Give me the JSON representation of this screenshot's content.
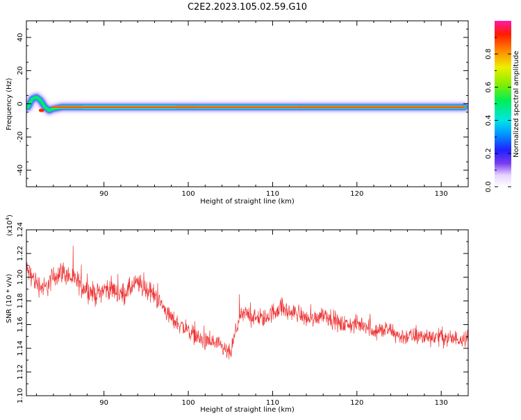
{
  "page_title": "C2E2.2023.105.02.59.G10",
  "chart_data": [
    {
      "type": "heatmap",
      "name": "spectrogram",
      "title": "C2E2.2023.105.02.59.G10",
      "xlabel": "Height of straight line (km)",
      "ylabel": "Frequency (Hz)",
      "xlim": [
        80.8,
        133.2
      ],
      "ylim": [
        -50,
        50
      ],
      "xticks": [
        90,
        100,
        110,
        120,
        130
      ],
      "yticks": [
        40,
        20,
        0,
        -20,
        -40
      ],
      "ridge": [
        [
          81.0,
          -2
        ],
        [
          81.5,
          3
        ],
        [
          82.0,
          4
        ],
        [
          82.5,
          2
        ],
        [
          83.0,
          -2
        ],
        [
          83.5,
          -4
        ],
        [
          84.0,
          -3
        ],
        [
          85,
          -2
        ],
        [
          90,
          -2
        ],
        [
          95,
          -2
        ],
        [
          100,
          -2
        ],
        [
          105,
          -2
        ],
        [
          110,
          -2
        ],
        [
          115,
          -2
        ],
        [
          120,
          -2
        ],
        [
          125,
          -2
        ],
        [
          130,
          -2
        ],
        [
          132.8,
          -2
        ]
      ],
      "colorbar": {
        "label": "Normalized spectral amplitude",
        "range": [
          0.0,
          1.0
        ],
        "ticks": [
          0.0,
          0.2,
          0.4,
          0.6,
          0.8
        ],
        "tick_labels": [
          "0.0",
          "0.2",
          "0.4",
          "0.6",
          "0.8"
        ]
      }
    },
    {
      "type": "line",
      "name": "snr",
      "xlabel": "Height of straight line (km)",
      "ylabel": "SNR (10 * v/v)",
      "scale_label": "(x10",
      "scale_exp": "4",
      "scale_close": ")",
      "xlim": [
        80.8,
        133.2
      ],
      "ylim": [
        1.1,
        1.24
      ],
      "xticks": [
        90,
        100,
        110,
        120,
        130
      ],
      "yticks": [
        1.1,
        1.12,
        1.14,
        1.16,
        1.18,
        1.2,
        1.22,
        1.24
      ],
      "ytick_labels": [
        "1.10",
        "1.12",
        "1.14",
        "1.16",
        "1.18",
        "1.20",
        "1.22",
        "1.24"
      ],
      "color": "#ee3333",
      "x": [
        81,
        82,
        83,
        84,
        85,
        86,
        87,
        88,
        89,
        90,
        91,
        92,
        93,
        94,
        95,
        96,
        97,
        98,
        99,
        100,
        101,
        102,
        103,
        104,
        105,
        106,
        107,
        108,
        109,
        110,
        111,
        112,
        113,
        114,
        115,
        116,
        117,
        118,
        119,
        120,
        121,
        122,
        123,
        124,
        125,
        126,
        127,
        128,
        129,
        130,
        131,
        132,
        133
      ],
      "y": [
        1.205,
        1.195,
        1.19,
        1.2,
        1.205,
        1.2,
        1.195,
        1.19,
        1.185,
        1.19,
        1.19,
        1.185,
        1.19,
        1.195,
        1.19,
        1.185,
        1.175,
        1.165,
        1.16,
        1.155,
        1.15,
        1.145,
        1.145,
        1.14,
        1.135,
        1.165,
        1.17,
        1.165,
        1.165,
        1.17,
        1.175,
        1.17,
        1.17,
        1.165,
        1.165,
        1.17,
        1.165,
        1.16,
        1.16,
        1.16,
        1.16,
        1.155,
        1.155,
        1.155,
        1.15,
        1.15,
        1.15,
        1.15,
        1.15,
        1.15,
        1.148,
        1.148,
        1.15
      ],
      "noise": [
        0.014,
        0.014,
        0.014,
        0.014,
        0.014,
        0.014,
        0.014,
        0.014,
        0.013,
        0.013,
        0.013,
        0.013,
        0.013,
        0.013,
        0.013,
        0.012,
        0.012,
        0.011,
        0.011,
        0.011,
        0.011,
        0.011,
        0.011,
        0.011,
        0.011,
        0.011,
        0.011,
        0.011,
        0.011,
        0.012,
        0.012,
        0.011,
        0.011,
        0.011,
        0.011,
        0.011,
        0.011,
        0.011,
        0.011,
        0.011,
        0.011,
        0.011,
        0.011,
        0.011,
        0.011,
        0.011,
        0.011,
        0.011,
        0.011,
        0.011,
        0.011,
        0.011,
        0.011
      ]
    }
  ]
}
